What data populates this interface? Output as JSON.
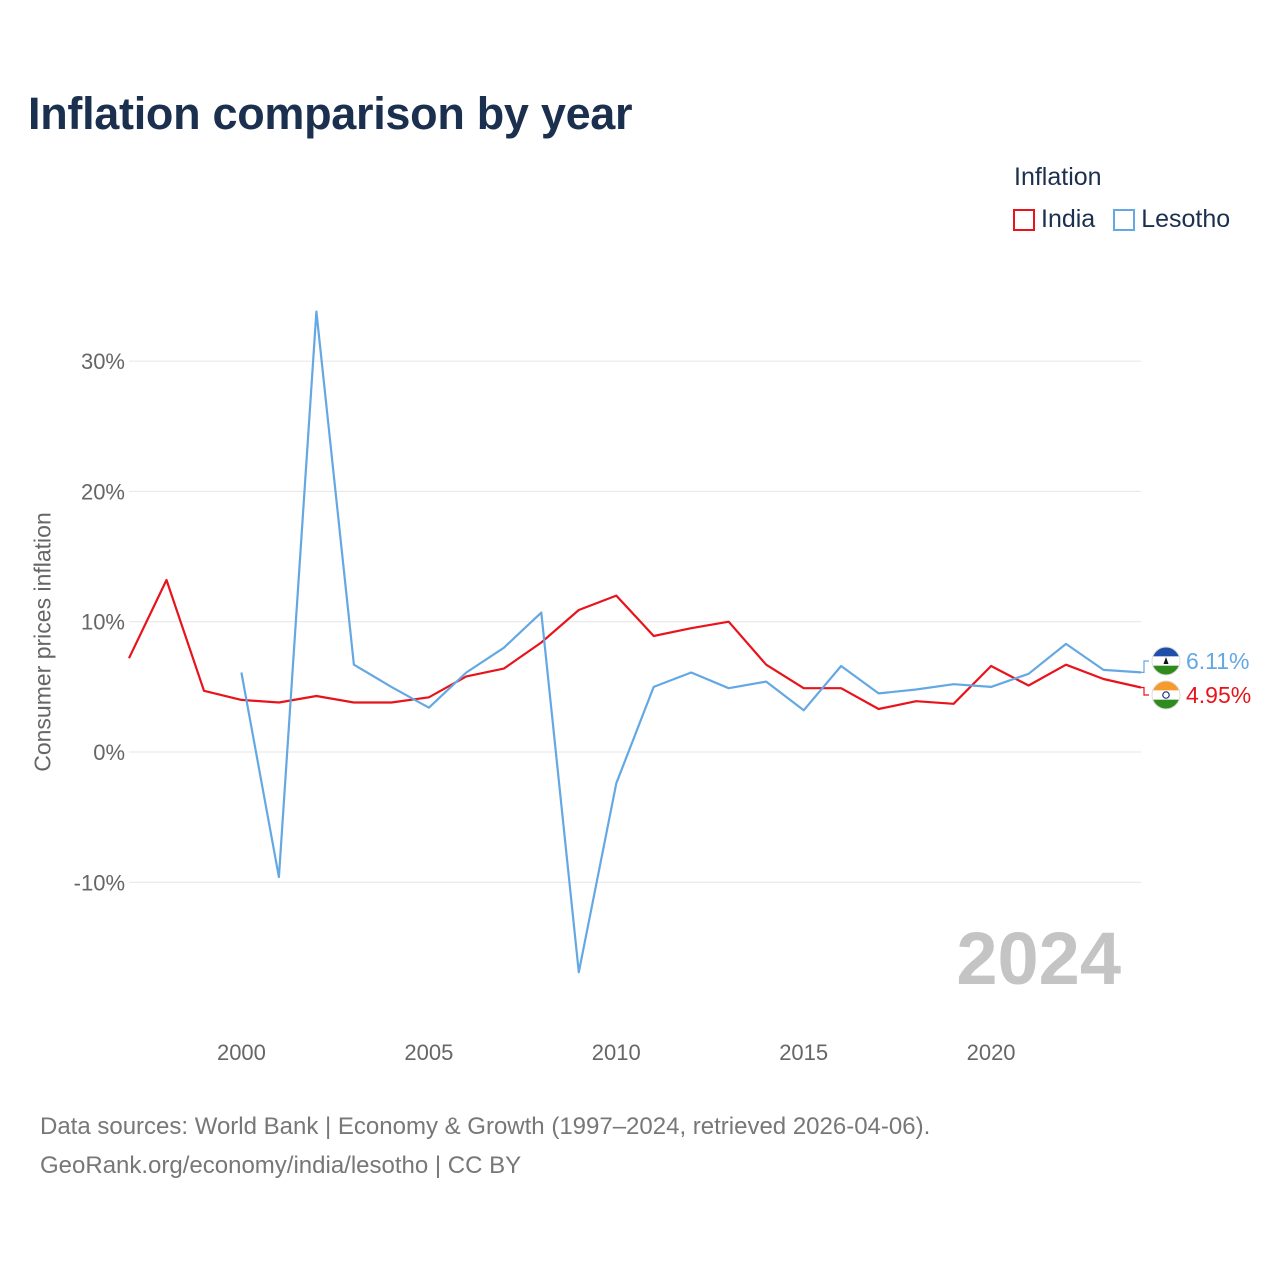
{
  "title": "Inflation comparison by year",
  "legend": {
    "title": "Inflation",
    "items": [
      {
        "name": "India",
        "color": "#e8131b"
      },
      {
        "name": "Lesotho",
        "color": "#64a8e3"
      }
    ]
  },
  "footer": {
    "line1": "Data sources: World Bank | Economy & Growth (1997–2024, retrieved 2026-04-06).",
    "line2": "GeoRank.org/economy/india/lesotho | CC BY"
  },
  "chart_data": {
    "type": "line",
    "ylabel": "Consumer prices inflation",
    "xlim": [
      1997,
      2024
    ],
    "ylim": [
      -20,
      35
    ],
    "xticks": [
      2000,
      2005,
      2010,
      2015,
      2020
    ],
    "yticks": [
      -10,
      0,
      10,
      20,
      30
    ],
    "ytick_labels": [
      "-10%",
      "0%",
      "10%",
      "20%",
      "30%"
    ],
    "grid": true,
    "year_watermark": "2024",
    "series": [
      {
        "name": "India",
        "color": "#e8131b",
        "end_label": "4.95%",
        "x": [
          1997,
          1998,
          1999,
          2000,
          2001,
          2002,
          2003,
          2004,
          2005,
          2006,
          2007,
          2008,
          2009,
          2010,
          2011,
          2012,
          2013,
          2014,
          2015,
          2016,
          2017,
          2018,
          2019,
          2020,
          2021,
          2022,
          2023,
          2024
        ],
        "values": [
          7.2,
          13.2,
          4.7,
          4.0,
          3.8,
          4.3,
          3.8,
          3.8,
          4.2,
          5.8,
          6.4,
          8.4,
          10.9,
          12.0,
          8.9,
          9.5,
          10.0,
          6.7,
          4.9,
          4.9,
          3.3,
          3.9,
          3.7,
          6.6,
          5.1,
          6.7,
          5.6,
          4.95
        ]
      },
      {
        "name": "Lesotho",
        "color": "#64a8e3",
        "end_label": "6.11%",
        "x": [
          2000,
          2001,
          2002,
          2003,
          2004,
          2005,
          2006,
          2007,
          2008,
          2009,
          2010,
          2011,
          2012,
          2013,
          2014,
          2015,
          2016,
          2017,
          2018,
          2019,
          2020,
          2021,
          2022,
          2023,
          2024
        ],
        "values": [
          6.1,
          -9.6,
          33.8,
          6.7,
          5.0,
          3.4,
          6.1,
          8.0,
          10.7,
          -16.9,
          -2.4,
          5.0,
          6.1,
          4.9,
          5.4,
          3.2,
          6.6,
          4.5,
          4.8,
          5.2,
          5.0,
          6.0,
          8.3,
          6.3,
          6.11
        ]
      }
    ]
  }
}
